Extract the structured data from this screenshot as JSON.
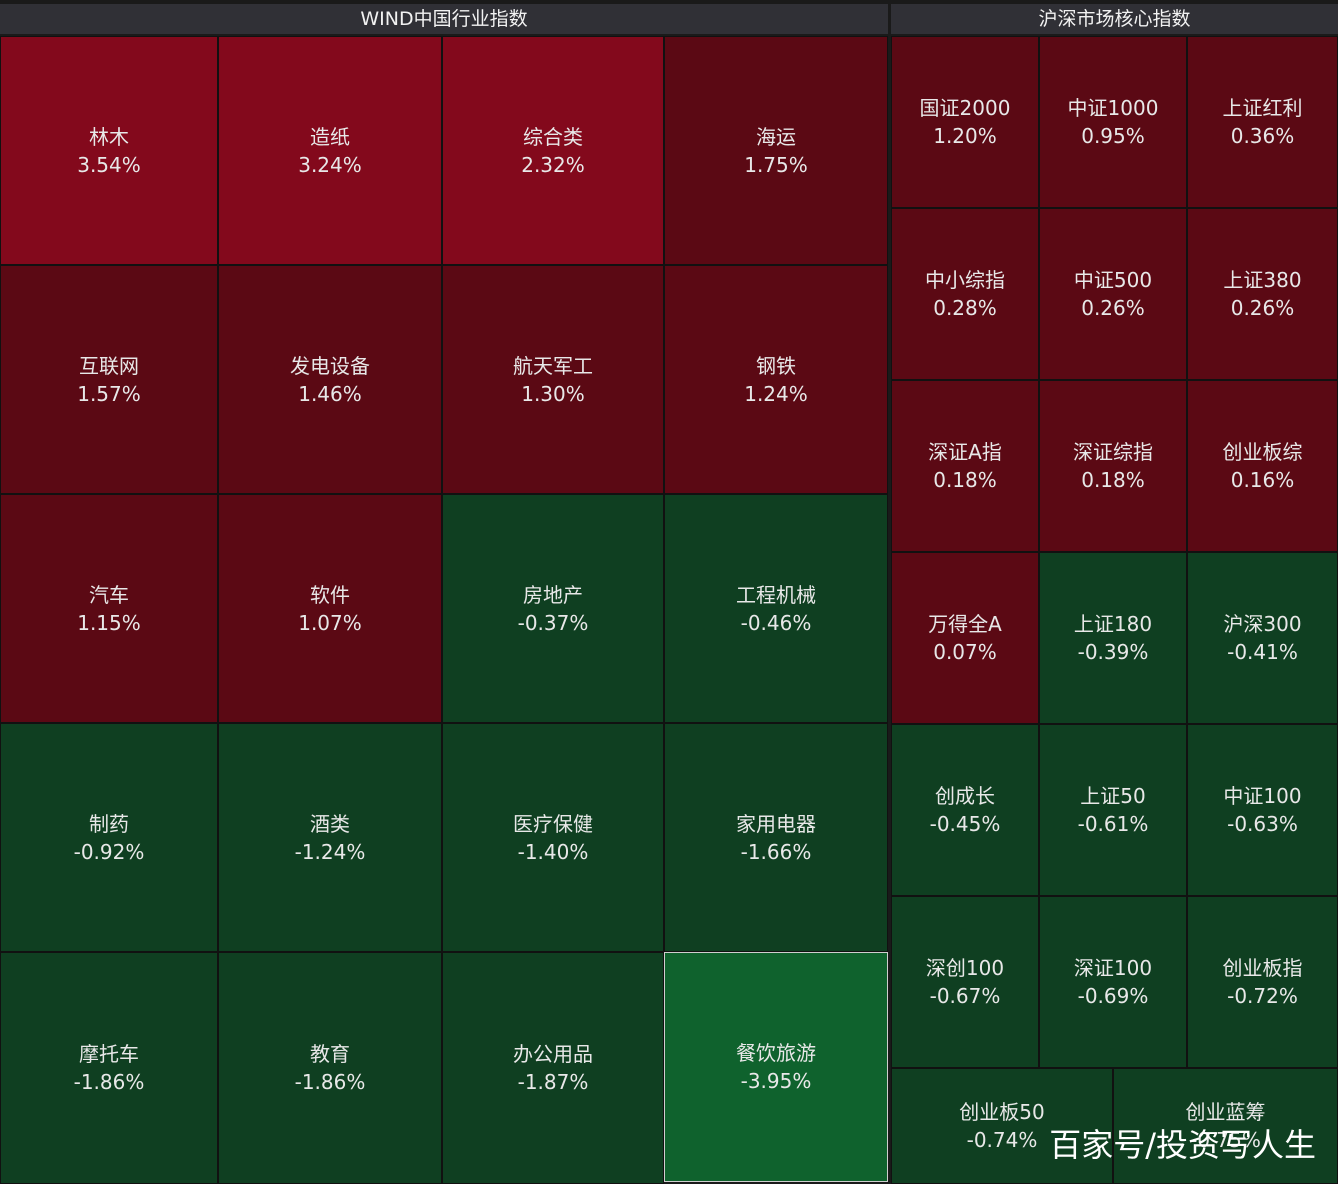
{
  "left_panel": {
    "title": "WIND中国行业指数",
    "tiles": [
      {
        "name": "林木",
        "pct": "3.54%"
      },
      {
        "name": "造纸",
        "pct": "3.24%"
      },
      {
        "name": "综合类",
        "pct": "2.32%"
      },
      {
        "name": "海运",
        "pct": "1.75%"
      },
      {
        "name": "互联网",
        "pct": "1.57%"
      },
      {
        "name": "发电设备",
        "pct": "1.46%"
      },
      {
        "name": "航天军工",
        "pct": "1.30%"
      },
      {
        "name": "钢铁",
        "pct": "1.24%"
      },
      {
        "name": "汽车",
        "pct": "1.15%"
      },
      {
        "name": "软件",
        "pct": "1.07%"
      },
      {
        "name": "房地产",
        "pct": "-0.37%"
      },
      {
        "name": "工程机械",
        "pct": "-0.46%"
      },
      {
        "name": "制药",
        "pct": "-0.92%"
      },
      {
        "name": "酒类",
        "pct": "-1.24%"
      },
      {
        "name": "医疗保健",
        "pct": "-1.40%"
      },
      {
        "name": "家用电器",
        "pct": "-1.66%"
      },
      {
        "name": "摩托车",
        "pct": "-1.86%"
      },
      {
        "name": "教育",
        "pct": "-1.86%"
      },
      {
        "name": "办公用品",
        "pct": "-1.87%"
      },
      {
        "name": "餐饮旅游",
        "pct": "-3.95%"
      }
    ]
  },
  "right_panel": {
    "title": "沪深市场核心指数",
    "tiles": [
      {
        "name": "国证2000",
        "pct": "1.20%"
      },
      {
        "name": "中证1000",
        "pct": "0.95%"
      },
      {
        "name": "上证红利",
        "pct": "0.36%"
      },
      {
        "name": "中小综指",
        "pct": "0.28%"
      },
      {
        "name": "中证500",
        "pct": "0.26%"
      },
      {
        "name": "上证380",
        "pct": "0.26%"
      },
      {
        "name": "深证A指",
        "pct": "0.18%"
      },
      {
        "name": "深证综指",
        "pct": "0.18%"
      },
      {
        "name": "创业板综",
        "pct": "0.16%"
      },
      {
        "name": "万得全A",
        "pct": "0.07%"
      },
      {
        "name": "上证180",
        "pct": "-0.39%"
      },
      {
        "name": "沪深300",
        "pct": "-0.41%"
      },
      {
        "name": "创成长",
        "pct": "-0.45%"
      },
      {
        "name": "上证50",
        "pct": "-0.61%"
      },
      {
        "name": "中证100",
        "pct": "-0.63%"
      },
      {
        "name": "深创100",
        "pct": "-0.67%"
      },
      {
        "name": "深证100",
        "pct": "-0.69%"
      },
      {
        "name": "创业板指",
        "pct": "-0.72%"
      },
      {
        "name": "创业板50",
        "pct": "-0.74%"
      },
      {
        "name": "创业蓝筹",
        "pct": "-0.75%"
      }
    ]
  },
  "colors": {
    "strong_red": "#83091c",
    "dark_red": "#5b0914",
    "dark_green": "#0f3f21",
    "strong_green": "#0f622d"
  },
  "watermark": "百家号/投资写人生"
}
